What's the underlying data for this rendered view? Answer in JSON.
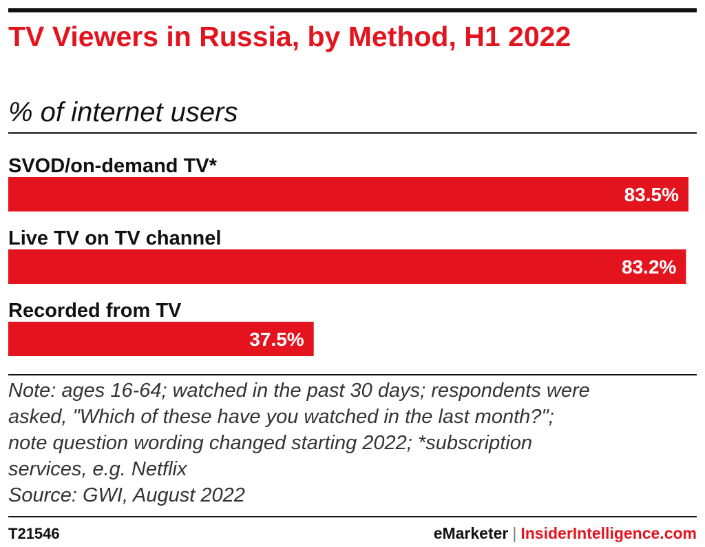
{
  "header": {
    "title": "TV Viewers in Russia, by Method, H1 2022",
    "subtitle": "% of internet users"
  },
  "colors": {
    "accent": "#e4141f",
    "text": "#111111",
    "bar_label_inside": "#ffffff"
  },
  "chart_data": {
    "type": "bar",
    "orientation": "horizontal",
    "title": "TV Viewers in Russia, by Method, H1 2022",
    "subtitle": "% of internet users",
    "categories": [
      "SVOD/on-demand TV*",
      "Live TV on TV channel",
      "Recorded from TV"
    ],
    "values": [
      83.5,
      83.2,
      37.5
    ],
    "value_labels": [
      "83.5%",
      "83.2%",
      "37.5%"
    ],
    "xlabel": "",
    "ylabel": "",
    "xlim": [
      0,
      83.5
    ],
    "grid": false,
    "legend": "none"
  },
  "note": {
    "lines": [
      "Note: ages 16-64; watched in the past 30 days; respondents were",
      "asked, \"Which of these have you watched in the last month?\";",
      "note question wording changed starting 2022; *subscription",
      "services, e.g. Netflix",
      "Source: GWI, August 2022"
    ]
  },
  "footer": {
    "chart_id": "T21546",
    "brand_primary": "eMarketer",
    "brand_separator": "|",
    "brand_secondary": "InsiderIntelligence.com"
  }
}
